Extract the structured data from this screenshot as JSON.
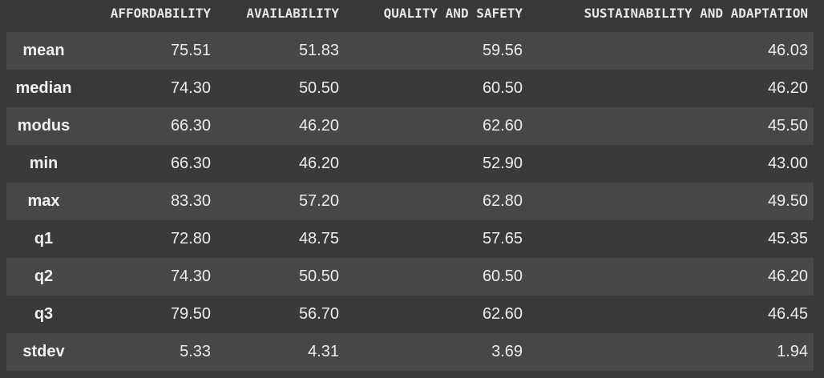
{
  "table": {
    "columns": [
      "AFFORDABILITY",
      "AVAILABILITY",
      "QUALITY AND SAFETY",
      "SUSTAINABILITY AND ADAPTATION"
    ],
    "rows": [
      {
        "label": "mean",
        "values": [
          "75.51",
          "51.83",
          "59.56",
          "46.03"
        ]
      },
      {
        "label": "median",
        "values": [
          "74.30",
          "50.50",
          "60.50",
          "46.20"
        ]
      },
      {
        "label": "modus",
        "values": [
          "66.30",
          "46.20",
          "62.60",
          "45.50"
        ]
      },
      {
        "label": "min",
        "values": [
          "66.30",
          "46.20",
          "52.90",
          "43.00"
        ]
      },
      {
        "label": "max",
        "values": [
          "83.30",
          "57.20",
          "62.80",
          "49.50"
        ]
      },
      {
        "label": "q1",
        "values": [
          "72.80",
          "48.75",
          "57.65",
          "45.35"
        ]
      },
      {
        "label": "q2",
        "values": [
          "74.30",
          "50.50",
          "60.50",
          "46.20"
        ]
      },
      {
        "label": "q3",
        "values": [
          "79.50",
          "56.70",
          "62.60",
          "46.45"
        ]
      },
      {
        "label": "stdev",
        "values": [
          "5.33",
          "4.31",
          "3.69",
          "1.94"
        ]
      }
    ]
  }
}
